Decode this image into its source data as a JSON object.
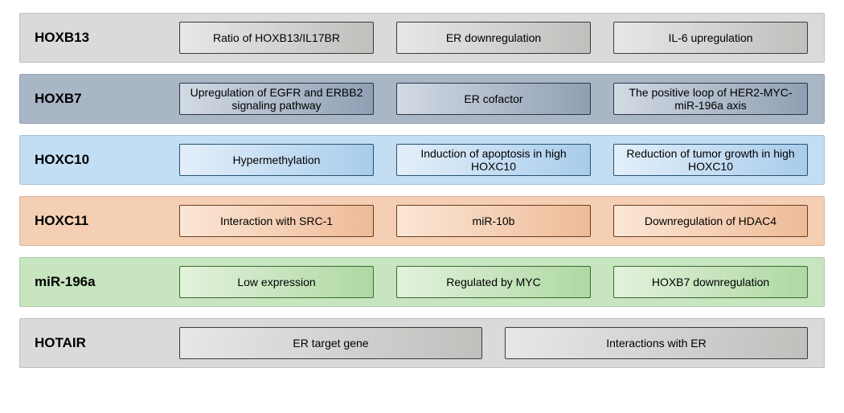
{
  "rows": [
    {
      "label": "HOXB13",
      "row_bg": "#dadbd8",
      "box_gradient_from": "#e7e7e5",
      "box_gradient_to": "#bfc0bd",
      "box_border": "#3a3a3a",
      "boxes": [
        "Ratio of HOXB13/IL17BR",
        "ER downregulation",
        "IL-6 upregulation"
      ]
    },
    {
      "label": "HOXB7",
      "row_bg": "#a9b6c6",
      "box_gradient_from": "#d2dae4",
      "box_gradient_to": "#8f9fb3",
      "box_border": "#2d3542",
      "boxes": [
        "Upregulation of EGFR and ERBB2 signaling pathway",
        "ER cofactor",
        "The positive loop of HER2-MYC-miR-196a axis"
      ]
    },
    {
      "label": "HOXC10",
      "row_bg": "#c3ddf2",
      "box_gradient_from": "#e3effa",
      "box_gradient_to": "#a8cceb",
      "box_border": "#26506f",
      "boxes": [
        "Hypermethylation",
        "Induction of apoptosis in high HOXC10",
        "Reduction of tumor growth in high HOXC10"
      ]
    },
    {
      "label": "HOXC11",
      "row_bg": "#f4cfb3",
      "box_gradient_from": "#fbe6d6",
      "box_gradient_to": "#eebb97",
      "box_border": "#6a3d1e",
      "boxes": [
        "Interaction with SRC-1",
        "miR-10b",
        "Downregulation of HDAC4"
      ]
    },
    {
      "label": "miR-196a",
      "row_bg": "#c7e5bf",
      "box_gradient_from": "#e3f2dc",
      "box_gradient_to": "#aed8a3",
      "box_border": "#3a6b30",
      "boxes": [
        "Low expression",
        "Regulated by MYC",
        "HOXB7 downregulation"
      ]
    },
    {
      "label": "HOTAIR",
      "row_bg": "#dadbd8",
      "box_gradient_from": "#e7e7e5",
      "box_gradient_to": "#bfc0bd",
      "box_border": "#3a3a3a",
      "boxes": [
        "ER target gene",
        "Interactions with ER"
      ]
    }
  ],
  "typography": {
    "label_fontsize": 17,
    "box_fontsize": 14
  }
}
